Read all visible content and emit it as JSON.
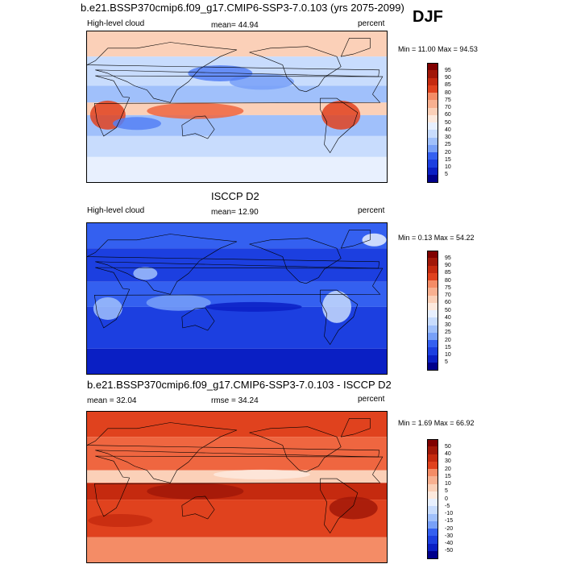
{
  "header": {
    "title": "b.e21.BSSP370cmip6.f09_g17.CMIP6-SSP3-7.0.103 (yrs 2075-2099)",
    "season": "DJF"
  },
  "panels": [
    {
      "left_label": "High-level cloud",
      "stat_label": "mean=  44.94",
      "units": "percent",
      "minmax": "Min = 11.00 Max = 94.53",
      "palette": [
        "#00008b",
        "#0a1fc4",
        "#1c3fe0",
        "#3460f0",
        "#5580f5",
        "#78a0f8",
        "#a0c0fb",
        "#c8dcfd",
        "#e8f0fe",
        "#fde9dd",
        "#fbd0b8",
        "#f8b090",
        "#f48c66",
        "#ef6640",
        "#e0421e",
        "#c52a0f",
        "#a11708",
        "#800000"
      ]
    },
    {
      "title": "ISCCP D2",
      "left_label": "High-level cloud",
      "stat_label": "mean=  12.90",
      "units": "percent",
      "minmax": "Min =  0.13 Max =  54.22",
      "palette": [
        "#00008b",
        "#0a1fc4",
        "#1c3fe0",
        "#3460f0",
        "#5580f5",
        "#78a0f8",
        "#a0c0fb",
        "#c8dcfd",
        "#e8f0fe",
        "#fde9dd",
        "#fbd0b8",
        "#f8b090",
        "#f48c66",
        "#ef6640",
        "#e0421e",
        "#c52a0f",
        "#a11708",
        "#800000"
      ]
    },
    {
      "title": "b.e21.BSSP370cmip6.f09_g17.CMIP6-SSP3-7.0.103 - ISCCP D2",
      "left_label": "mean =  32.04",
      "stat_label": "rmse =  34.24",
      "units": "percent",
      "minmax": "Min =  1.69 Max =  66.92",
      "palette": [
        "#00008b",
        "#0a1fc4",
        "#1c3fe0",
        "#3460f0",
        "#5580f5",
        "#78a0f8",
        "#a0c0fb",
        "#c8dcfd",
        "#e8f0fe",
        "#fde9dd",
        "#fbd0b8",
        "#f8b090",
        "#f48c66",
        "#ef6640",
        "#e0421e",
        "#c52a0f",
        "#a11708",
        "#800000"
      ]
    }
  ],
  "chart_data": [
    {
      "type": "heatmap",
      "title": "High-level cloud (model, DJF)",
      "units": "percent",
      "mean": 44.94,
      "min": 11.0,
      "max": 94.53,
      "colorbar_levels": [
        5,
        10,
        15,
        20,
        25,
        30,
        40,
        50,
        60,
        70,
        75,
        80,
        85,
        90,
        95
      ]
    },
    {
      "type": "heatmap",
      "title": "ISCCP D2 High-level cloud",
      "units": "percent",
      "mean": 12.9,
      "min": 0.13,
      "max": 54.22,
      "colorbar_levels": [
        5,
        10,
        15,
        20,
        25,
        30,
        40,
        50,
        60,
        70,
        75,
        80,
        85,
        90,
        95
      ]
    },
    {
      "type": "heatmap",
      "title": "b.e21.BSSP370cmip6.f09_g17.CMIP6-SSP3-7.0.103 - ISCCP D2",
      "units": "percent",
      "mean": 32.04,
      "rmse": 34.24,
      "min": 1.69,
      "max": 66.92,
      "colorbar_levels": [
        -50,
        -40,
        -30,
        -20,
        -15,
        -10,
        -5,
        0,
        5,
        10,
        15,
        20,
        30,
        40,
        50
      ]
    }
  ]
}
